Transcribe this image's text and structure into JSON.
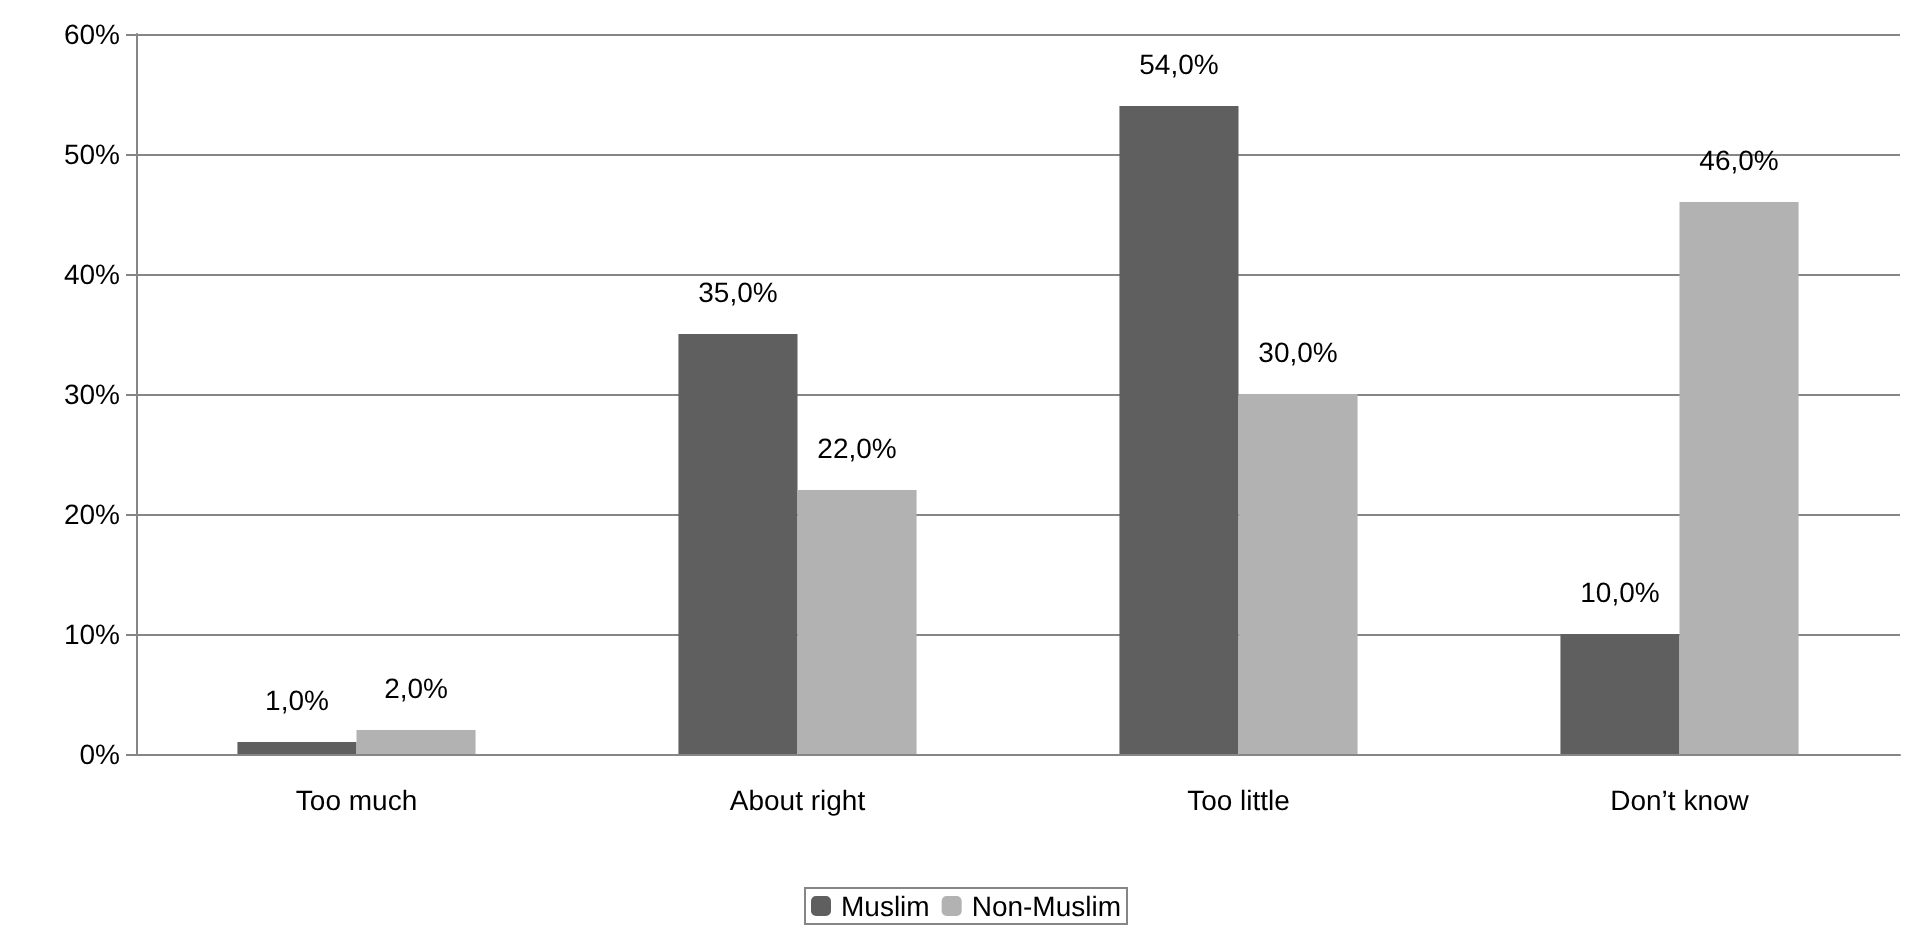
{
  "chart_data": {
    "type": "bar",
    "categories": [
      "Too much",
      "About right",
      "Too little",
      "Don’t know"
    ],
    "series": [
      {
        "name": "Muslim",
        "color": "#5f5f5f",
        "values": [
          1,
          35,
          54,
          10
        ],
        "value_labels": [
          "1,0%",
          "35,0%",
          "54,0%",
          "10,0%"
        ]
      },
      {
        "name": "Non-Muslim",
        "color": "#b2b2b2",
        "values": [
          2,
          22,
          30,
          46
        ],
        "value_labels": [
          "2,0%",
          "22,0%",
          "30,0%",
          "46,0%"
        ]
      }
    ],
    "ylim": [
      0,
      60
    ],
    "yticks": [
      {
        "value": 0,
        "label": "0%"
      },
      {
        "value": 10,
        "label": "10%"
      },
      {
        "value": 20,
        "label": "20%"
      },
      {
        "value": 30,
        "label": "30%"
      },
      {
        "value": 40,
        "label": "40%"
      },
      {
        "value": 50,
        "label": "50%"
      },
      {
        "value": 60,
        "label": "60%"
      }
    ],
    "grid": "y",
    "legend": "bottom"
  }
}
